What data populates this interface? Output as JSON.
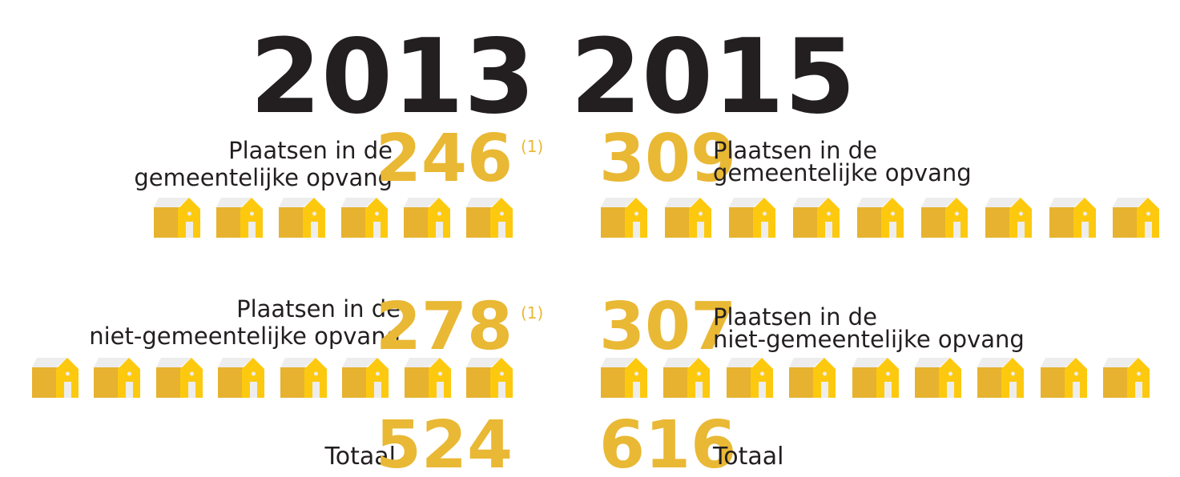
{
  "years": [
    "2013",
    "2015"
  ],
  "columns": [
    {
      "rows": [
        {
          "label_line1": "Plaatsen in de",
          "label_line2": "gemeentelijke opvang",
          "value": 246,
          "note": "(1)"
        },
        {
          "label_line1": "Plaatsen in de",
          "label_line2": "niet-gemeentelijke opvang",
          "value": 278,
          "note": "(1)"
        }
      ],
      "total_label": "Totaal",
      "total": 524
    },
    {
      "rows": [
        {
          "label_line1": "Plaatsen in de",
          "label_line2": "gemeentelijke opvang",
          "value": 309
        },
        {
          "label_line1": "Plaatsen in de",
          "label_line2": "niet-gemeentelijke opvang",
          "value": 307
        }
      ],
      "total_label": "Totaal",
      "total": 616
    }
  ]
}
